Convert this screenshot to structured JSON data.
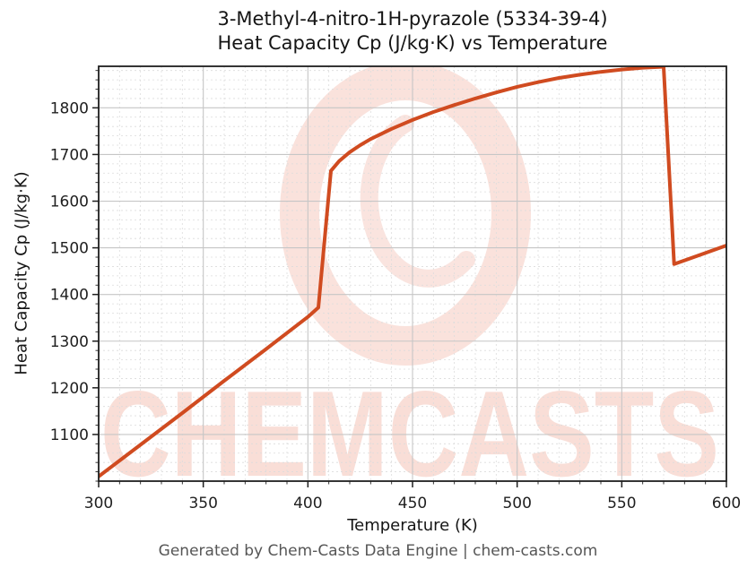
{
  "header": {
    "title_lines": [
      "3-Methyl-4-nitro-1H-pyrazole (5334-39-4)",
      "Heat Capacity Cp (J/kg·K) vs Temperature"
    ]
  },
  "chart_data": {
    "type": "line",
    "title": "3-Methyl-4-nitro-1H-pyrazole (5334-39-4) Heat Capacity Cp (J/kg·K) vs Temperature",
    "xlabel": "Temperature (K)",
    "ylabel": "Heat Capacity Cp (J/kg·K)",
    "xlim": [
      300,
      600
    ],
    "ylim": [
      1000,
      1889
    ],
    "x_ticks": [
      300,
      350,
      400,
      450,
      500,
      550,
      600
    ],
    "y_ticks": [
      1100,
      1200,
      1300,
      1400,
      1500,
      1600,
      1700,
      1800
    ],
    "x_minor_step": 10,
    "y_minor_step": 20,
    "grid": true,
    "legend": "none",
    "line_color": "#d04b20",
    "line_width": 4,
    "major_grid_color": "#c6c6c6",
    "minor_grid_color": "#dcdcdc",
    "spine_color": "#1f1f1f",
    "series": [
      {
        "name": "Heat Capacity Cp (J/kg·K)",
        "points": [
          [
            300,
            1010
          ],
          [
            320,
            1078
          ],
          [
            340,
            1146
          ],
          [
            360,
            1215
          ],
          [
            380,
            1283
          ],
          [
            400,
            1352
          ],
          [
            405,
            1372
          ],
          [
            411,
            1665
          ],
          [
            415,
            1686
          ],
          [
            420,
            1705
          ],
          [
            425,
            1720
          ],
          [
            430,
            1733
          ],
          [
            440,
            1755
          ],
          [
            450,
            1774
          ],
          [
            460,
            1791
          ],
          [
            470,
            1806
          ],
          [
            480,
            1820
          ],
          [
            490,
            1833
          ],
          [
            500,
            1845
          ],
          [
            510,
            1855
          ],
          [
            520,
            1864
          ],
          [
            530,
            1871
          ],
          [
            540,
            1877
          ],
          [
            550,
            1882
          ],
          [
            560,
            1886
          ],
          [
            570,
            1888
          ],
          [
            575,
            1465
          ],
          [
            600,
            1505
          ]
        ]
      }
    ],
    "annotations": {
      "solid_phase_range_K": [
        300,
        405
      ],
      "melting_transition_K": [
        405,
        411
      ],
      "liquid_phase_range_K": [
        411,
        570
      ],
      "vaporization_drop_K": [
        570,
        575
      ],
      "gas_phase_range_K": [
        575,
        600
      ]
    }
  },
  "watermark": {
    "text": "CHEMCASTS",
    "color": "#f0b2a2"
  },
  "footer": {
    "text": "Generated by Chem-Casts Data Engine | chem-casts.com"
  }
}
